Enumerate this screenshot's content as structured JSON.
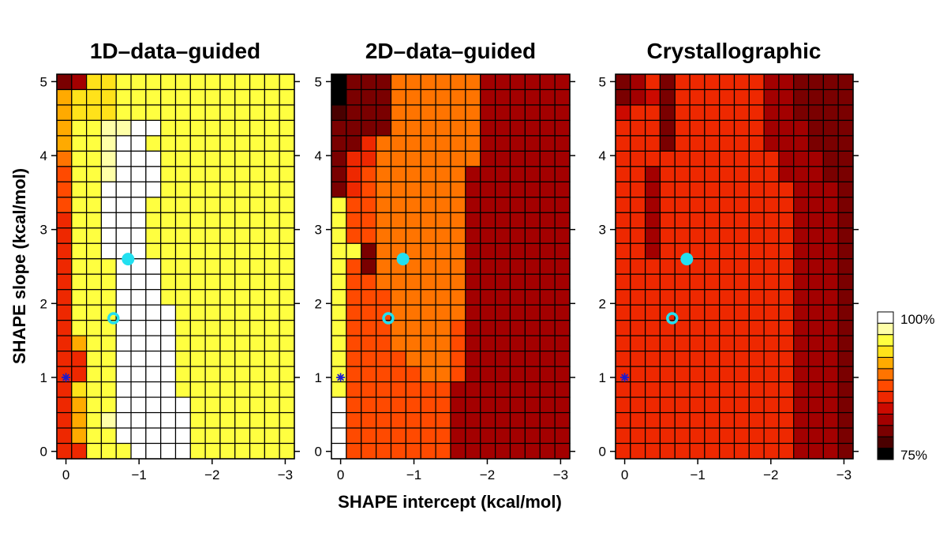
{
  "figure": {
    "ylabel": "SHAPE slope (kcal/mol)",
    "xlabel": "SHAPE intercept (kcal/mol)",
    "colorbar": {
      "max_label": "100%",
      "min_label": "75%"
    }
  },
  "palette": [
    "#000000",
    "#4a0000",
    "#7a0000",
    "#a30000",
    "#cc0a00",
    "#ee2800",
    "#ff4a00",
    "#ff7400",
    "#ffaa00",
    "#ffe21a",
    "#ffff40",
    "#ffffa8",
    "#ffffff"
  ],
  "chart_data": [
    {
      "type": "heatmap",
      "title": "1D–data–guided",
      "x_ticks": [
        0,
        -1,
        -2,
        -3
      ],
      "x_tick_labels": [
        "0",
        "−1",
        "−2",
        "−3"
      ],
      "y_ticks": [
        0,
        1,
        2,
        3,
        4,
        5
      ],
      "y_tick_labels": [
        "0",
        "1",
        "2",
        "3",
        "4",
        "5"
      ],
      "rows": [
        "2399AAAAAAAAAAAA",
        "8999AAAAAAAAAAAA",
        "8999AAAAAAAAAAAA",
        "8AABBCCAAAAAAAAA",
        "8AABCCAAAAAAAAAA",
        "7AABCCCAAAAAAAAA",
        "6AABCCCAAAAAAAAA",
        "6AACCCCAAAAAAAAA",
        "6AACCCAAAAAAAAAA",
        "5AACCCAAAAAAAAAA",
        "5AACCCAAAAAAAAAA",
        "5AACCCAAAAAAAAAA",
        "5AAACCCAAAAAAAAA",
        "5AAACCCAAAAAAAAA",
        "5AAACCCAAAAAAAAA",
        "5AAACCCCAAAAAAAA",
        "5AAACCCCAAAAAAAA",
        "58AACCCCAAAAAAAA",
        "55AACCCCAAAAAAAA",
        "55AACCCCAAAAAAAA",
        "59AACCCCAAAAAAAA",
        "58AACCCCCAAAAAAA",
        "58ABCCCCCAAAAAAA",
        "58AACCCCCAAAAAAA",
        "55AAACCCCAAAAAAA",
        "55AAACCCCAAAAAAA",
        "55AAACCCCAAAAAAA",
        "55AAACCCCAAAAAAA",
        "55AAACCCCAAAAAAA",
        "55AAACCCCAAAAAAA",
        "55AAACCCCAAAAAAA",
        "55AAACCCCAAAAAAA",
        "55AAACCCCAAAAAAA",
        "55AAACCCCAAAAAAA",
        "55AAACCCCAAAAAAA",
        "55AAACCCCAAAAAAA",
        "55AAACCCCAAAAAAA",
        "55AAACCCCAAAAAAA",
        "55AAACCCCAAAAAAA",
        "55AAACCCCAAAAAAA",
        "55AAACCCCAAAAAAA",
        "55AAACCCCAAAAAAA",
        "55AAACCCCAAAAAAA",
        "55AAACCCCAAAAAAA",
        "55AAACCCCAAAAAAA",
        "55AAACCCCAAAAAAA",
        "55AAACCCCAAAAAAA",
        "55AAACCCCAAAAAAA",
        "55AAACCCCAAAAAAA",
        "55AAACCCCAAAAAAA"
      ],
      "markers": [
        {
          "name": "filled-circle",
          "style": "filled",
          "x": -0.85,
          "y": 2.6
        },
        {
          "name": "open-circle",
          "style": "ring",
          "x": -0.65,
          "y": 1.8
        },
        {
          "name": "asterisk",
          "style": "star",
          "x": 0.0,
          "y": 1.0
        }
      ]
    },
    {
      "type": "heatmap",
      "title": "2D–data–guided",
      "x_ticks": [
        0,
        -1,
        -2,
        -3
      ],
      "x_tick_labels": [
        "0",
        "−1",
        "−2",
        "−3"
      ],
      "y_ticks": [
        0,
        1,
        2,
        3,
        4,
        5
      ],
      "y_tick_labels": [
        "0",
        "1",
        "2",
        "3",
        "4",
        "5"
      ],
      "rows": [
        "0222777777333333",
        "0222777777333333",
        "1222777777333333",
        "2222777777333333",
        "2257777777333333",
        "2557777777333333",
        "2567777773333333",
        "2567777773333333",
        "A667777773333333",
        "A6677777733333333",
        "A6677777733333333",
        "AA277777733333333",
        "A6277777733333333",
        "A6677777733333333",
        "A6667777733333333",
        "A6667777733333333",
        "A6667777633333333",
        "A6667777633333333",
        "A6666777633333333",
        "A6666677633333333",
        "A6666666333333333",
        "C6666666333333333",
        "C6666666333333333",
        "C6666666333333333",
        "C6666666333333333",
        "66666663222222222",
        "66666663222222222",
        "66666663222222222"
      ],
      "markers": [
        {
          "name": "filled-circle",
          "style": "filled",
          "x": -0.85,
          "y": 2.6
        },
        {
          "name": "open-circle",
          "style": "ring",
          "x": -0.65,
          "y": 1.8
        },
        {
          "name": "asterisk",
          "style": "star",
          "x": 0.0,
          "y": 1.0
        }
      ]
    },
    {
      "type": "heatmap",
      "title": "Crystallographic",
      "x_ticks": [
        0,
        -1,
        -2,
        -3
      ],
      "x_tick_labels": [
        "0",
        "−1",
        "−2",
        "−3"
      ],
      "y_ticks": [
        0,
        1,
        2,
        3,
        4,
        5
      ],
      "y_tick_labels": [
        "0",
        "1",
        "2",
        "3",
        "4",
        "5"
      ],
      "rows": [
        "2352555555332222",
        "2342555555332222",
        "4552555555332222",
        "5552555555333222",
        "5552555555333222",
        "5555555555533322",
        "5535555555533322",
        "5535555555553332",
        "5535555555553332",
        "5535555555553332",
        "5535555555553332",
        "5535555555553332",
        "5555555555553332",
        "5555555555553332",
        "5555555555553332",
        "5555555555553332",
        "5555555555553332",
        "5555555555553332",
        "5555555555553332",
        "5555555555553332"
      ],
      "markers": [
        {
          "name": "filled-circle",
          "style": "filled",
          "x": -0.85,
          "y": 2.6
        },
        {
          "name": "open-circle",
          "style": "ring",
          "x": -0.65,
          "y": 1.8
        },
        {
          "name": "asterisk",
          "style": "star",
          "x": 0.0,
          "y": 1.0
        }
      ]
    }
  ]
}
